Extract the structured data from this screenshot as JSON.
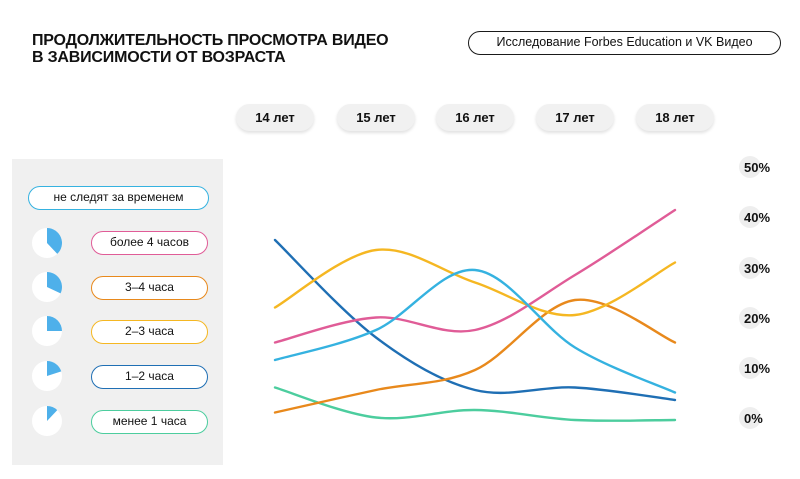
{
  "header": {
    "title_line1": "Продолжительность просмотра видео",
    "title_line2": "в зависимости от возраста",
    "source": "Исследование Forbes Education и VK Видео"
  },
  "legend": {
    "heading": "не следят за временем"
  },
  "chart_data": {
    "type": "line",
    "title": "Продолжительность просмотра видео в зависимости от возраста",
    "categories": [
      "14 лет",
      "15 лет",
      "16 лет",
      "17 лет",
      "18 лет"
    ],
    "y_ticks": [
      "50%",
      "40%",
      "30%",
      "20%",
      "10%",
      "0%"
    ],
    "ylim": [
      0,
      50
    ],
    "grid": false,
    "series": [
      {
        "name": "более 4 часов",
        "color": "#e05c97",
        "pie_fraction": 0.38,
        "values": [
          15.5,
          20.5,
          18,
          29,
          42
        ]
      },
      {
        "name": "3–4 часа",
        "color": "#e8891c",
        "pie_fraction": 0.32,
        "values": [
          1.5,
          6,
          10,
          24,
          15.5
        ]
      },
      {
        "name": "2–3 часа",
        "color": "#f5b722",
        "pie_fraction": 0.25,
        "values": [
          22.5,
          34,
          27.5,
          21,
          31.5
        ]
      },
      {
        "name": "1–2 часа",
        "color": "#1f6fb4",
        "pie_fraction": 0.2,
        "values": [
          36,
          16.5,
          6,
          6.5,
          4
        ]
      },
      {
        "name": "менее 1 часа",
        "color": "#4ccd9e",
        "pie_fraction": 0.12,
        "values": [
          6.5,
          0.5,
          2,
          0,
          0
        ]
      },
      {
        "name": "",
        "color": "#35b2e0",
        "values": [
          12,
          18,
          30,
          14.5,
          5.5
        ]
      }
    ]
  }
}
